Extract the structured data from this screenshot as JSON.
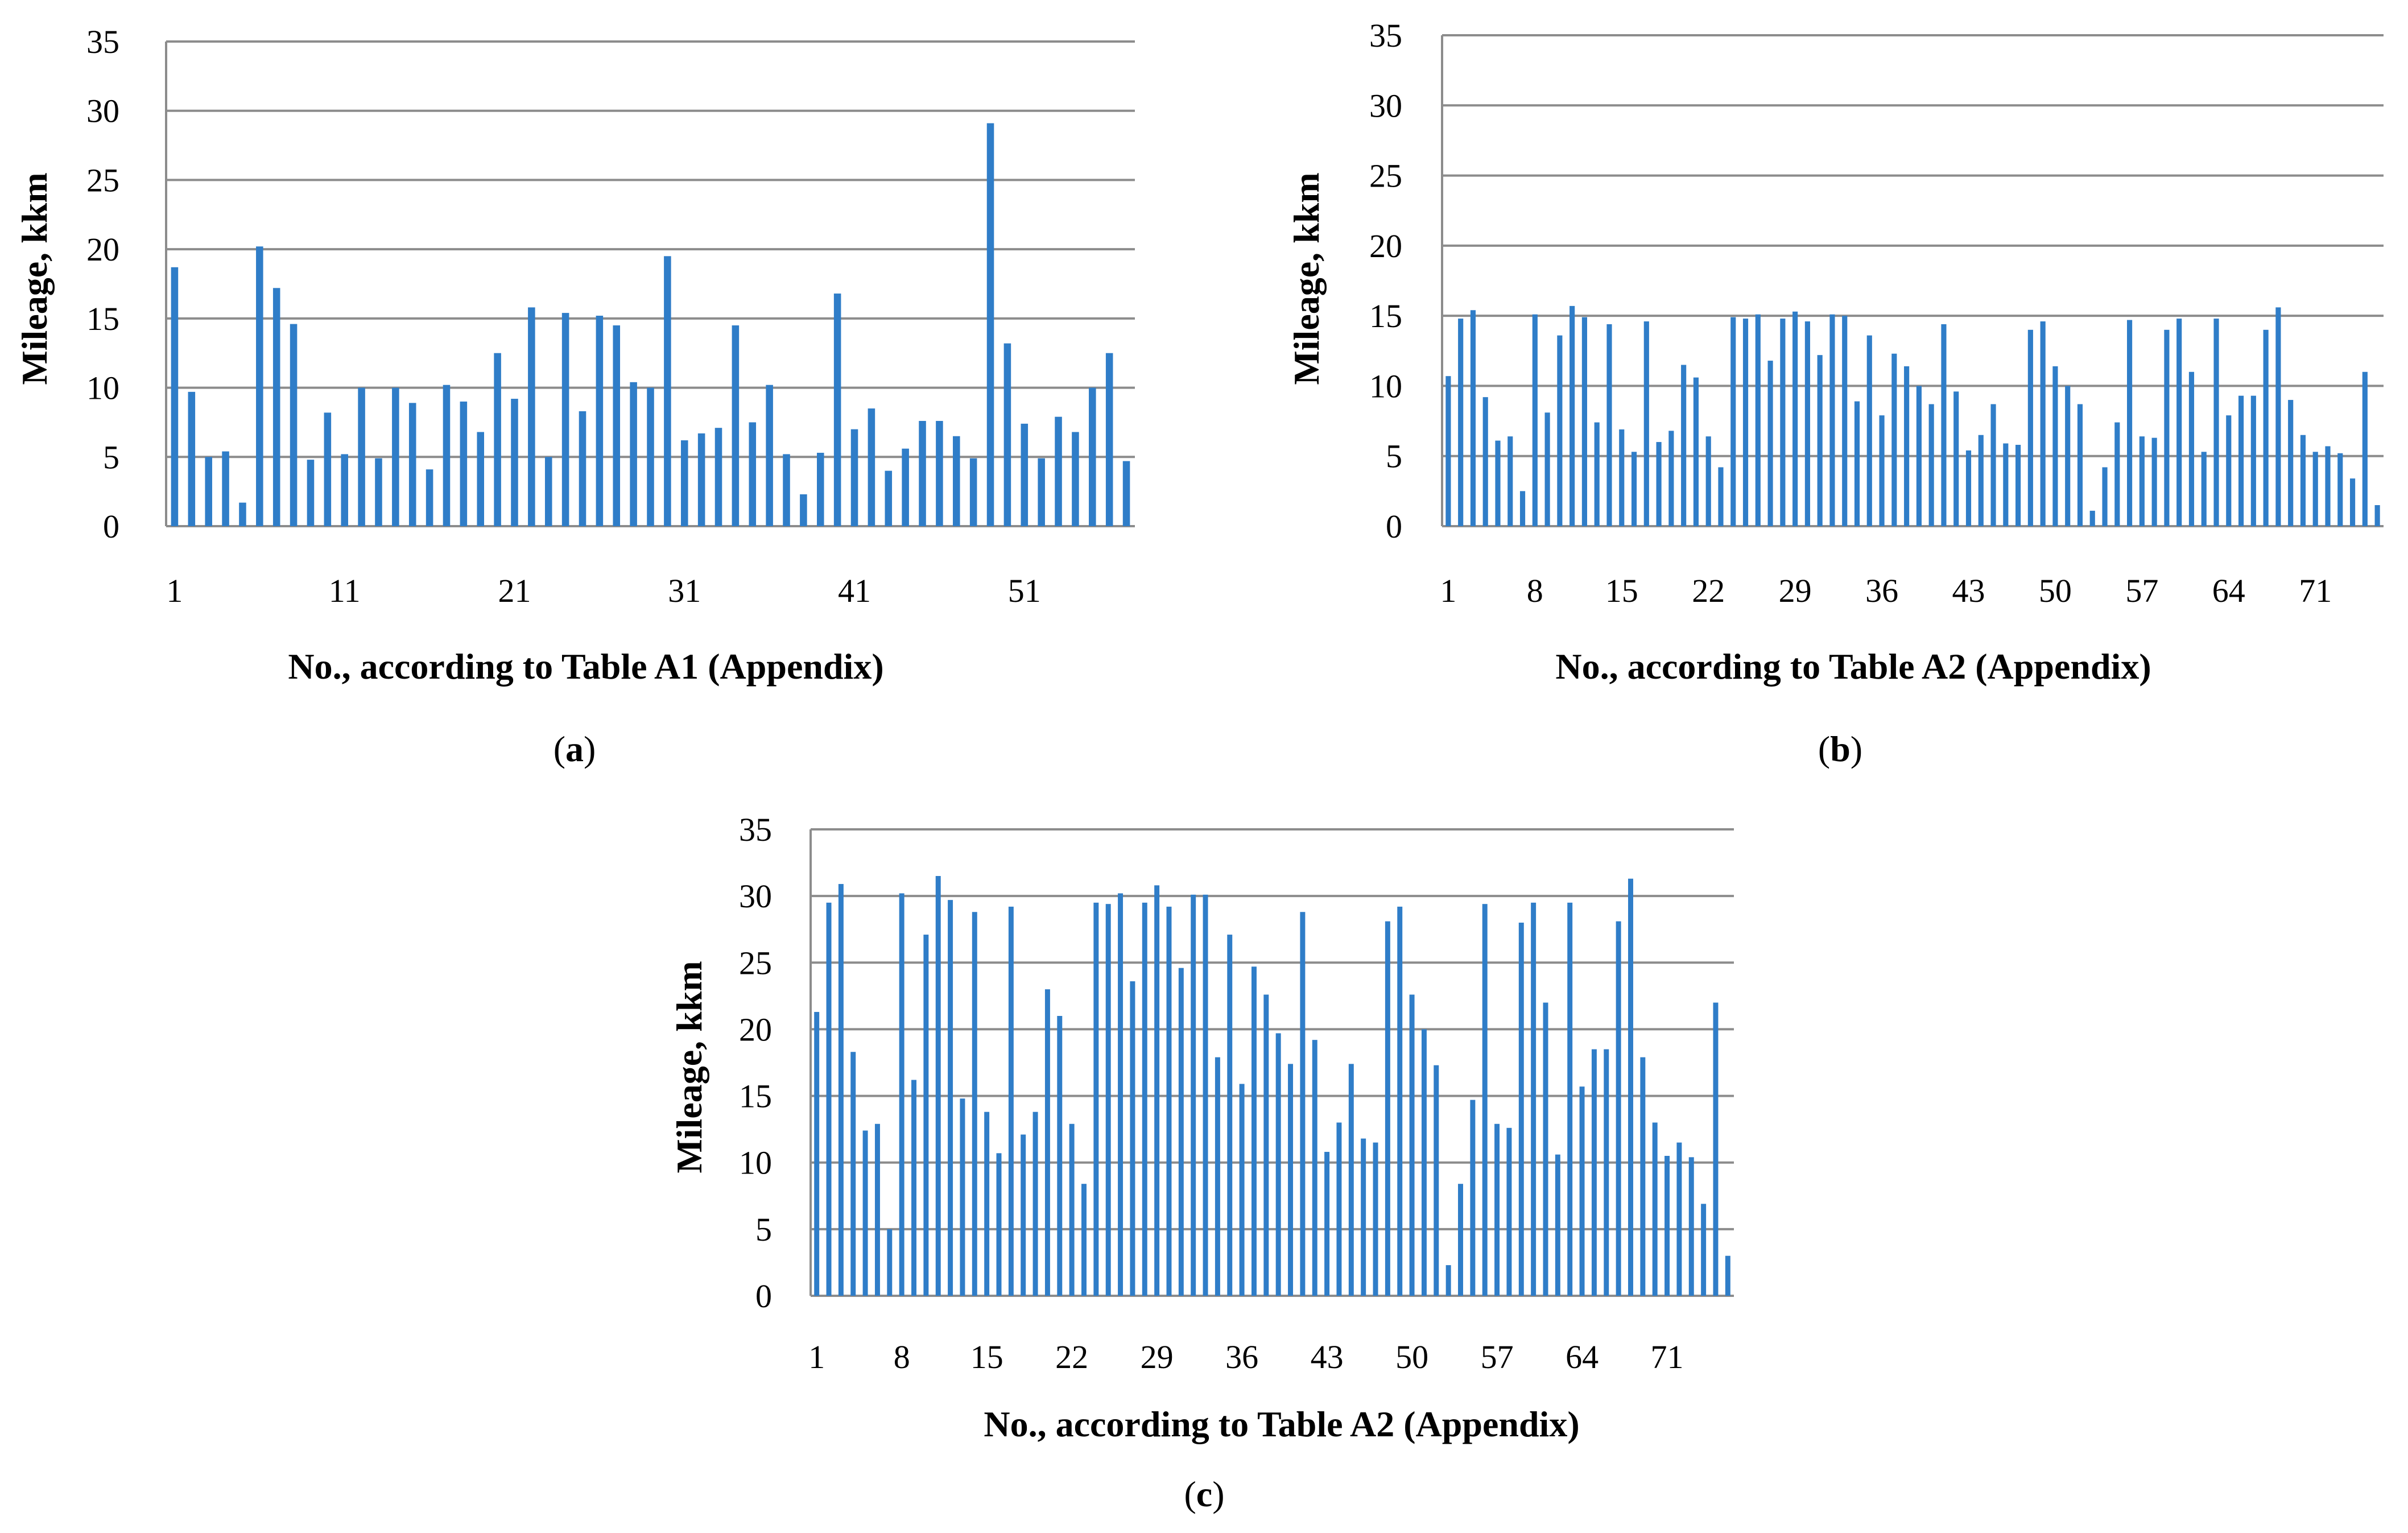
{
  "figure": {
    "panels": [
      {
        "open": "(",
        "letter": "a",
        "close": ")"
      },
      {
        "open": "(",
        "letter": "b",
        "close": ")"
      },
      {
        "open": "(",
        "letter": "c",
        "close": ")"
      }
    ]
  },
  "style": {
    "bar_color": "#2f7dc8",
    "grid_color": "#8c8c8c"
  },
  "chart_data": [
    {
      "panel": "a",
      "type": "bar",
      "title": "",
      "xlabel": "No., according to Table A1 (Appendix)",
      "ylabel": "Mileage, kkm",
      "ylim": [
        0,
        35
      ],
      "yticks": [
        "0",
        "5",
        "10",
        "15",
        "20",
        "25",
        "30",
        "35"
      ],
      "xticks": [
        "1",
        "11",
        "21",
        "31",
        "41",
        "51"
      ],
      "xtick_indices": [
        1,
        11,
        21,
        31,
        41,
        51
      ],
      "n": 57,
      "values": [
        18.7,
        9.7,
        5.0,
        5.4,
        1.7,
        20.2,
        17.2,
        14.6,
        4.8,
        8.2,
        5.2,
        10.0,
        4.9,
        10.0,
        8.9,
        4.1,
        10.2,
        9.0,
        6.8,
        12.5,
        9.2,
        15.8,
        5.0,
        15.4,
        8.3,
        15.2,
        14.5,
        10.4,
        10.0,
        19.5,
        6.2,
        6.7,
        7.1,
        14.5,
        7.5,
        10.2,
        5.2,
        2.3,
        5.3,
        16.8,
        7.0,
        8.5,
        4.0,
        5.6,
        7.6,
        7.6,
        6.5,
        4.9,
        29.1,
        13.2,
        7.4,
        4.9,
        7.9,
        6.8,
        10.0,
        12.5,
        4.7
      ]
    },
    {
      "panel": "b",
      "type": "bar",
      "title": "",
      "xlabel": "No., according to Table A2 (Appendix)",
      "ylabel": "Mileage, kkm",
      "ylim": [
        0,
        35
      ],
      "yticks": [
        "0",
        "5",
        "10",
        "15",
        "20",
        "25",
        "30",
        "35"
      ],
      "xticks": [
        "1",
        "8",
        "15",
        "22",
        "29",
        "36",
        "43",
        "50",
        "57",
        "64",
        "71"
      ],
      "xtick_indices": [
        1,
        8,
        15,
        22,
        29,
        36,
        43,
        50,
        57,
        64,
        71
      ],
      "n": 76,
      "values": [
        10.7,
        14.8,
        15.4,
        9.2,
        6.1,
        6.4,
        2.5,
        15.1,
        8.1,
        13.6,
        15.7,
        14.9,
        7.4,
        14.4,
        6.9,
        5.3,
        14.6,
        6.0,
        6.8,
        11.5,
        10.6,
        6.4,
        4.2,
        14.9,
        14.8,
        15.1,
        11.8,
        14.8,
        15.3,
        14.6,
        12.2,
        15.1,
        15.0,
        8.9,
        13.6,
        7.9,
        12.3,
        11.4,
        10.0,
        8.7,
        14.4,
        9.6,
        5.4,
        6.5,
        8.7,
        5.9,
        5.8,
        14.0,
        14.6,
        11.4,
        10.0,
        8.7,
        1.1,
        4.2,
        7.4,
        14.7,
        6.4,
        6.3,
        14.0,
        14.8,
        11.0,
        5.3,
        14.8,
        7.9,
        9.3,
        9.3,
        14.0,
        15.6,
        9.0,
        6.5,
        5.3,
        5.7,
        5.2,
        3.4,
        11.0,
        1.5
      ]
    },
    {
      "panel": "c",
      "type": "bar",
      "title": "",
      "xlabel": "No., according to Table A2 (Appendix)",
      "ylabel": "Mileage, kkm",
      "ylim": [
        0,
        35
      ],
      "yticks": [
        "0",
        "5",
        "10",
        "15",
        "20",
        "25",
        "30",
        "35"
      ],
      "xticks": [
        "1",
        "8",
        "15",
        "22",
        "29",
        "36",
        "43",
        "50",
        "57",
        "64",
        "71"
      ],
      "xtick_indices": [
        1,
        8,
        15,
        22,
        29,
        36,
        43,
        50,
        57,
        64,
        71
      ],
      "n": 76,
      "values": [
        21.3,
        29.5,
        30.9,
        18.3,
        12.4,
        12.9,
        5.0,
        30.2,
        16.2,
        27.1,
        31.5,
        29.7,
        14.8,
        28.8,
        13.8,
        10.7,
        29.2,
        12.1,
        13.8,
        23.0,
        21.0,
        12.9,
        8.4,
        29.5,
        29.4,
        30.2,
        23.6,
        29.5,
        30.8,
        29.2,
        24.6,
        30.1,
        30.1,
        17.9,
        27.1,
        15.9,
        24.7,
        22.6,
        19.7,
        17.4,
        28.8,
        19.2,
        10.8,
        13.0,
        17.4,
        11.8,
        11.5,
        28.1,
        29.2,
        22.6,
        20.0,
        17.3,
        2.3,
        8.4,
        14.7,
        29.4,
        12.9,
        12.6,
        28.0,
        29.5,
        22.0,
        10.6,
        29.5,
        15.7,
        18.5,
        18.5,
        28.1,
        31.3,
        17.9,
        13.0,
        10.5,
        11.5,
        10.4,
        6.9,
        22.0,
        3.0
      ]
    }
  ]
}
